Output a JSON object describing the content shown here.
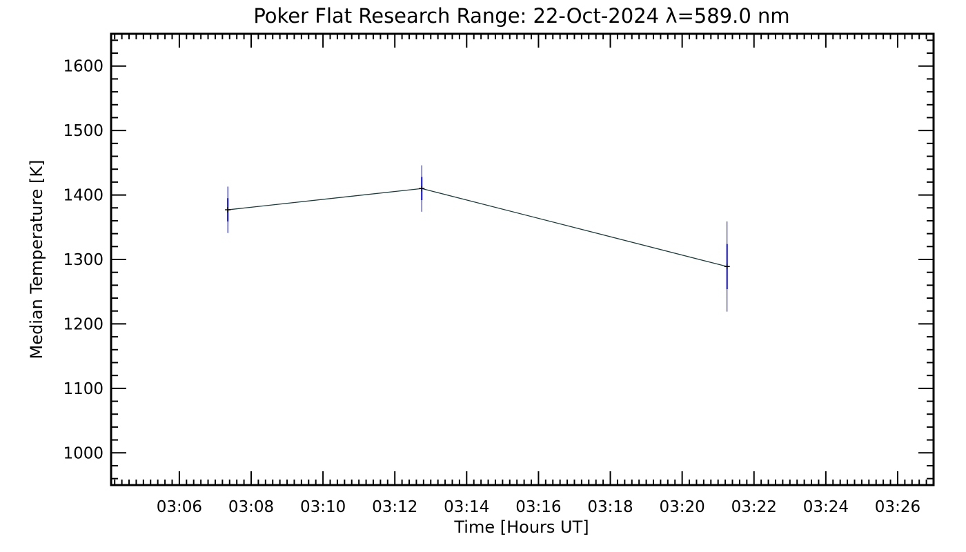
{
  "chart_data": {
    "type": "line",
    "title": "Poker Flat Research Range: 22-Oct-2024 λ=589.0 nm",
    "xlabel": "Time [Hours UT]",
    "ylabel": "Median Temperature [K]",
    "xlim_minutes": [
      184.1,
      207.0
    ],
    "ylim": [
      950,
      1650
    ],
    "x_ticks": [
      {
        "minutes": 186,
        "label": "03:06"
      },
      {
        "minutes": 188,
        "label": "03:08"
      },
      {
        "minutes": 190,
        "label": "03:10"
      },
      {
        "minutes": 192,
        "label": "03:12"
      },
      {
        "minutes": 194,
        "label": "03:14"
      },
      {
        "minutes": 196,
        "label": "03:16"
      },
      {
        "minutes": 198,
        "label": "03:18"
      },
      {
        "minutes": 200,
        "label": "03:20"
      },
      {
        "minutes": 202,
        "label": "03:22"
      },
      {
        "minutes": 204,
        "label": "03:24"
      },
      {
        "minutes": 206,
        "label": "03:26"
      }
    ],
    "y_ticks": [
      1000,
      1100,
      1200,
      1300,
      1400,
      1500,
      1600
    ],
    "series": [
      {
        "name": "Median Temperature",
        "color": "#1e3a3a",
        "points": [
          {
            "minutes": 187.35,
            "value": 1377,
            "err_outer": 36,
            "err_inner": 18
          },
          {
            "minutes": 192.75,
            "value": 1410,
            "err_outer": 36,
            "err_inner": 18
          },
          {
            "minutes": 201.25,
            "value": 1289,
            "err_outer": 70,
            "err_inner": 35
          }
        ]
      }
    ],
    "errorbar_color": "#0000ff",
    "grid": false
  }
}
